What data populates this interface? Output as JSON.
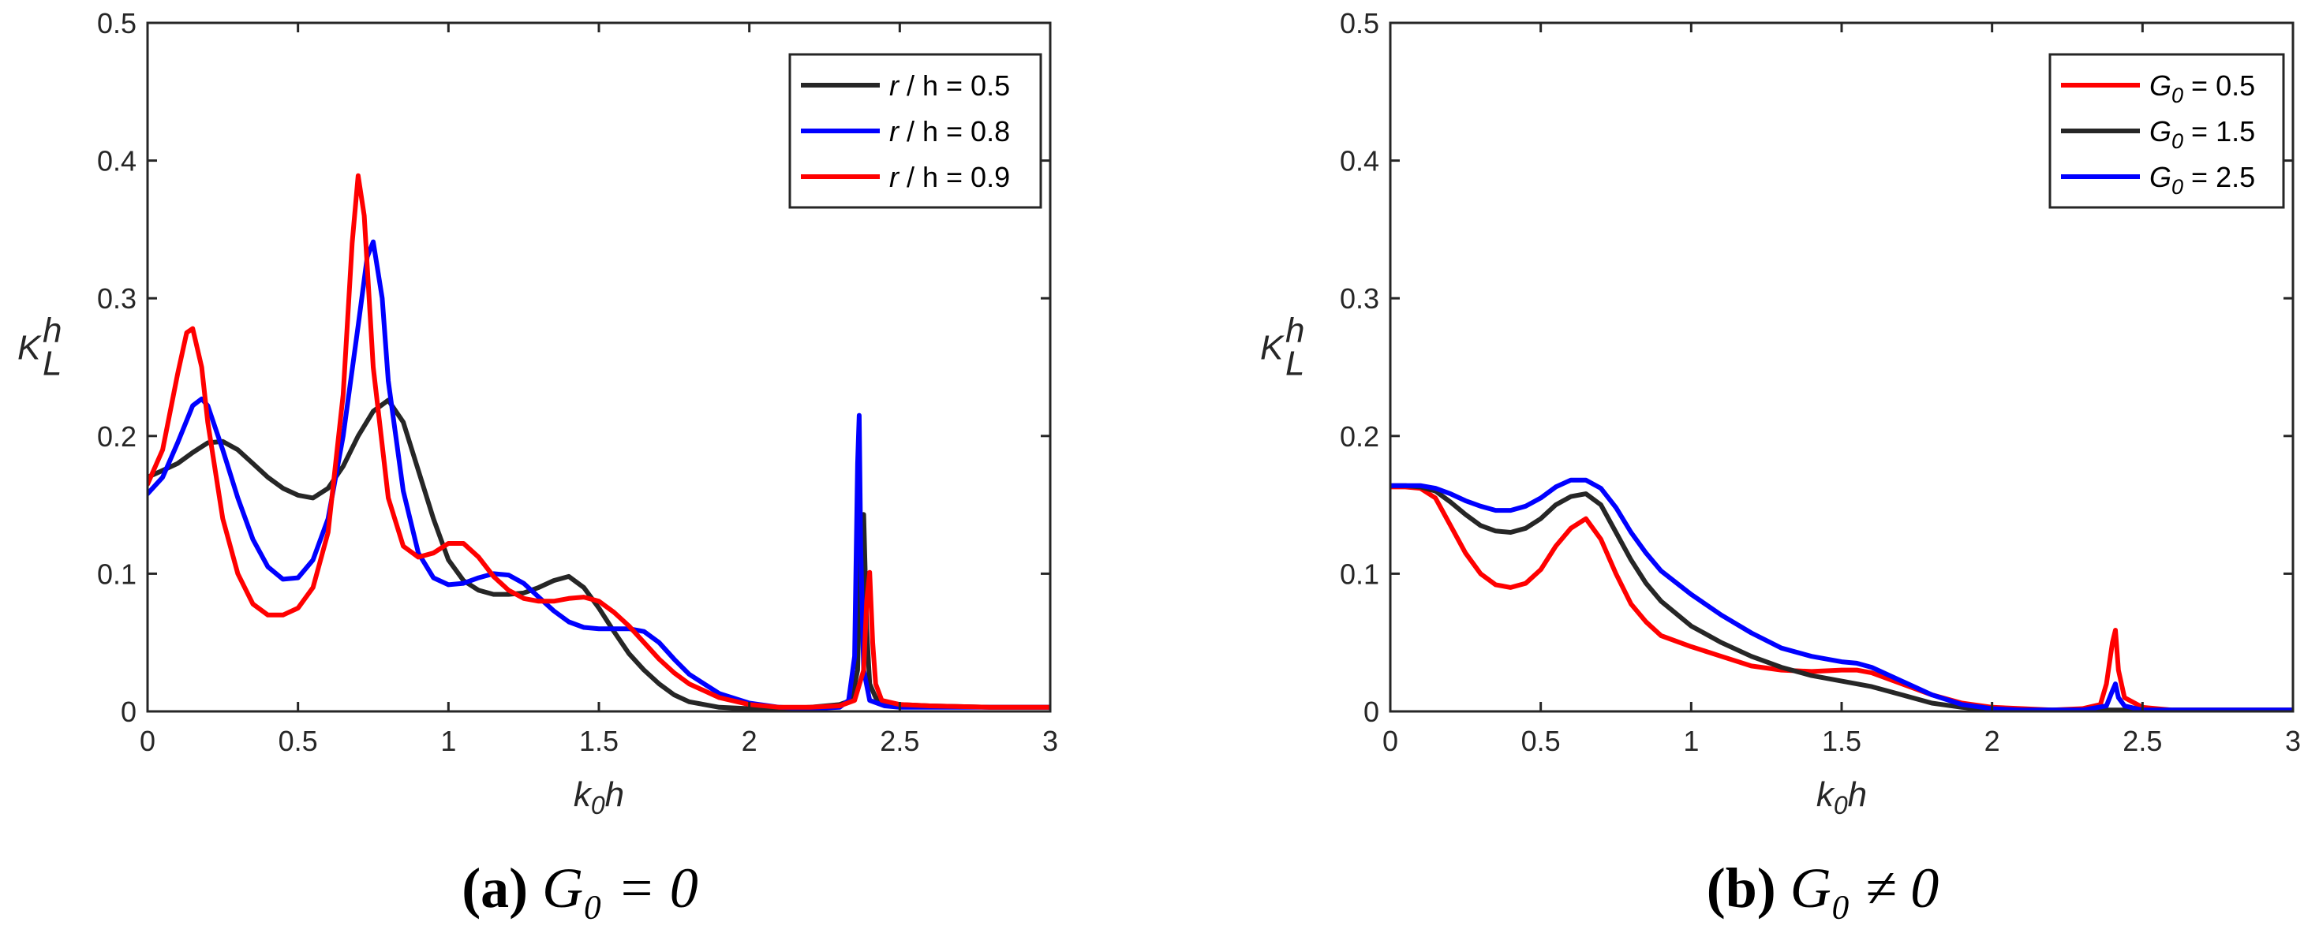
{
  "chart_data": [
    {
      "type": "line",
      "caption": {
        "tag": "(a)",
        "text": "G₀ = 0"
      },
      "xlabel": {
        "base": "k",
        "sub": "0",
        "tail": "h"
      },
      "ylabel": {
        "base": "K",
        "sup": "h",
        "sub": "L"
      },
      "xlim": [
        0,
        3
      ],
      "ylim": [
        0,
        0.5
      ],
      "xticks": [
        0,
        0.5,
        1,
        1.5,
        2,
        2.5,
        3
      ],
      "xtick_labels": [
        "0",
        "0.5",
        "1",
        "1.5",
        "2",
        "2.5",
        "3"
      ],
      "yticks": [
        0,
        0.1,
        0.2,
        0.3,
        0.4,
        0.5
      ],
      "ytick_labels": [
        "0",
        "0.1",
        "0.2",
        "0.3",
        "0.4",
        "0.5"
      ],
      "legend_position": "top-right",
      "series": [
        {
          "name": "r / h = 0.5",
          "legend_label": "r / h = 0.5",
          "color": "#262626",
          "x": [
            0,
            0.05,
            0.1,
            0.15,
            0.2,
            0.25,
            0.3,
            0.35,
            0.4,
            0.45,
            0.5,
            0.55,
            0.6,
            0.65,
            0.7,
            0.75,
            0.8,
            0.85,
            0.9,
            0.95,
            1.0,
            1.05,
            1.1,
            1.15,
            1.2,
            1.25,
            1.3,
            1.35,
            1.4,
            1.45,
            1.5,
            1.55,
            1.6,
            1.65,
            1.7,
            1.75,
            1.8,
            1.9,
            2.0,
            2.1,
            2.2,
            2.3,
            2.34,
            2.36,
            2.37,
            2.38,
            2.39,
            2.4,
            2.42,
            2.45,
            2.5,
            2.6,
            2.8,
            3.0
          ],
          "y": [
            0.17,
            0.175,
            0.18,
            0.188,
            0.195,
            0.196,
            0.19,
            0.18,
            0.17,
            0.162,
            0.157,
            0.155,
            0.162,
            0.178,
            0.2,
            0.218,
            0.226,
            0.21,
            0.175,
            0.14,
            0.11,
            0.095,
            0.088,
            0.085,
            0.085,
            0.086,
            0.09,
            0.095,
            0.098,
            0.09,
            0.075,
            0.058,
            0.042,
            0.03,
            0.02,
            0.012,
            0.007,
            0.003,
            0.002,
            0.002,
            0.003,
            0.005,
            0.008,
            0.03,
            0.12,
            0.143,
            0.06,
            0.02,
            0.01,
            0.007,
            0.005,
            0.004,
            0.003,
            0.003
          ]
        },
        {
          "name": "r / h = 0.8",
          "legend_label": "r / h = 0.8",
          "color": "#0000ff",
          "x": [
            0,
            0.05,
            0.1,
            0.15,
            0.18,
            0.2,
            0.25,
            0.3,
            0.35,
            0.4,
            0.45,
            0.5,
            0.55,
            0.6,
            0.65,
            0.7,
            0.73,
            0.75,
            0.78,
            0.8,
            0.85,
            0.9,
            0.95,
            1.0,
            1.05,
            1.1,
            1.15,
            1.2,
            1.25,
            1.3,
            1.35,
            1.4,
            1.45,
            1.5,
            1.55,
            1.6,
            1.65,
            1.7,
            1.75,
            1.8,
            1.9,
            2.0,
            2.1,
            2.2,
            2.3,
            2.33,
            2.35,
            2.36,
            2.365,
            2.37,
            2.38,
            2.4,
            2.45,
            2.5,
            2.6,
            2.8,
            3.0
          ],
          "y": [
            0.158,
            0.17,
            0.195,
            0.222,
            0.227,
            0.222,
            0.19,
            0.155,
            0.125,
            0.105,
            0.096,
            0.097,
            0.11,
            0.14,
            0.2,
            0.28,
            0.33,
            0.341,
            0.3,
            0.24,
            0.16,
            0.115,
            0.097,
            0.092,
            0.093,
            0.097,
            0.1,
            0.099,
            0.093,
            0.083,
            0.073,
            0.065,
            0.061,
            0.06,
            0.06,
            0.06,
            0.058,
            0.05,
            0.038,
            0.027,
            0.013,
            0.006,
            0.003,
            0.002,
            0.003,
            0.008,
            0.04,
            0.18,
            0.215,
            0.12,
            0.03,
            0.008,
            0.004,
            0.003,
            0.003,
            0.003,
            0.003
          ]
        },
        {
          "name": "r / h = 0.9",
          "legend_label": "r / h = 0.9",
          "color": "#ff0000",
          "x": [
            0,
            0.05,
            0.1,
            0.13,
            0.15,
            0.18,
            0.2,
            0.25,
            0.3,
            0.35,
            0.4,
            0.45,
            0.5,
            0.55,
            0.6,
            0.65,
            0.68,
            0.7,
            0.72,
            0.75,
            0.8,
            0.85,
            0.9,
            0.95,
            1.0,
            1.05,
            1.1,
            1.15,
            1.2,
            1.25,
            1.3,
            1.35,
            1.4,
            1.45,
            1.5,
            1.55,
            1.6,
            1.65,
            1.7,
            1.75,
            1.8,
            1.9,
            2.0,
            2.1,
            2.2,
            2.3,
            2.35,
            2.38,
            2.39,
            2.4,
            2.41,
            2.42,
            2.44,
            2.5,
            2.6,
            2.8,
            3.0
          ],
          "y": [
            0.165,
            0.19,
            0.245,
            0.275,
            0.278,
            0.25,
            0.21,
            0.14,
            0.1,
            0.078,
            0.07,
            0.07,
            0.075,
            0.09,
            0.13,
            0.23,
            0.34,
            0.389,
            0.36,
            0.25,
            0.155,
            0.12,
            0.112,
            0.115,
            0.122,
            0.122,
            0.112,
            0.098,
            0.088,
            0.082,
            0.08,
            0.08,
            0.082,
            0.083,
            0.08,
            0.072,
            0.062,
            0.05,
            0.038,
            0.028,
            0.02,
            0.01,
            0.005,
            0.003,
            0.003,
            0.004,
            0.008,
            0.03,
            0.08,
            0.101,
            0.05,
            0.02,
            0.008,
            0.005,
            0.004,
            0.003,
            0.003
          ]
        }
      ]
    },
    {
      "type": "line",
      "caption": {
        "tag": "(b)",
        "text": "G₀ ≠ 0"
      },
      "xlabel": {
        "base": "k",
        "sub": "0",
        "tail": "h"
      },
      "ylabel": {
        "base": "K",
        "sup": "h",
        "sub": "L"
      },
      "xlim": [
        0,
        3
      ],
      "ylim": [
        0,
        0.5
      ],
      "xticks": [
        0,
        0.5,
        1,
        1.5,
        2,
        2.5,
        3
      ],
      "xtick_labels": [
        "0",
        "0.5",
        "1",
        "1.5",
        "2",
        "2.5",
        "3"
      ],
      "yticks": [
        0,
        0.1,
        0.2,
        0.3,
        0.4,
        0.5
      ],
      "ytick_labels": [
        "0",
        "0.1",
        "0.2",
        "0.3",
        "0.4",
        "0.5"
      ],
      "legend_position": "top-right",
      "series": [
        {
          "name": "G0 = 0.5",
          "legend_label": {
            "base": "G",
            "sub": "0",
            "tail": " = 0.5"
          },
          "color": "#ff0000",
          "x": [
            0,
            0.05,
            0.1,
            0.15,
            0.2,
            0.25,
            0.3,
            0.35,
            0.4,
            0.45,
            0.5,
            0.55,
            0.6,
            0.65,
            0.7,
            0.75,
            0.8,
            0.85,
            0.9,
            1.0,
            1.1,
            1.2,
            1.3,
            1.4,
            1.5,
            1.55,
            1.6,
            1.7,
            1.8,
            1.9,
            2.0,
            2.1,
            2.2,
            2.3,
            2.36,
            2.38,
            2.4,
            2.41,
            2.42,
            2.44,
            2.5,
            2.6,
            2.8,
            3.0
          ],
          "y": [
            0.163,
            0.163,
            0.162,
            0.155,
            0.135,
            0.115,
            0.1,
            0.092,
            0.09,
            0.093,
            0.103,
            0.12,
            0.133,
            0.14,
            0.125,
            0.1,
            0.078,
            0.065,
            0.055,
            0.047,
            0.04,
            0.033,
            0.03,
            0.029,
            0.03,
            0.03,
            0.028,
            0.02,
            0.012,
            0.006,
            0.003,
            0.002,
            0.001,
            0.002,
            0.005,
            0.02,
            0.05,
            0.059,
            0.03,
            0.01,
            0.003,
            0.001,
            0.001,
            0.001
          ]
        },
        {
          "name": "G0 = 1.5",
          "legend_label": {
            "base": "G",
            "sub": "0",
            "tail": " = 1.5"
          },
          "color": "#262626",
          "x": [
            0,
            0.05,
            0.1,
            0.15,
            0.2,
            0.25,
            0.3,
            0.35,
            0.4,
            0.45,
            0.5,
            0.55,
            0.6,
            0.65,
            0.7,
            0.75,
            0.8,
            0.85,
            0.9,
            1.0,
            1.1,
            1.2,
            1.3,
            1.4,
            1.5,
            1.6,
            1.7,
            1.8,
            1.9,
            2.0,
            2.1,
            2.2,
            2.3,
            2.4,
            2.5,
            2.6,
            2.8,
            3.0
          ],
          "y": [
            0.164,
            0.164,
            0.163,
            0.16,
            0.152,
            0.143,
            0.135,
            0.131,
            0.13,
            0.133,
            0.14,
            0.15,
            0.156,
            0.158,
            0.15,
            0.13,
            0.11,
            0.093,
            0.08,
            0.062,
            0.05,
            0.04,
            0.032,
            0.026,
            0.022,
            0.018,
            0.012,
            0.006,
            0.003,
            0.001,
            0.001,
            0.001,
            0.001,
            0.001,
            0.001,
            0.001,
            0.001,
            0.001
          ]
        },
        {
          "name": "G0 = 2.5",
          "legend_label": {
            "base": "G",
            "sub": "0",
            "tail": " = 2.5"
          },
          "color": "#0000ff",
          "x": [
            0,
            0.05,
            0.1,
            0.15,
            0.2,
            0.25,
            0.3,
            0.35,
            0.4,
            0.45,
            0.5,
            0.55,
            0.6,
            0.65,
            0.7,
            0.75,
            0.8,
            0.85,
            0.9,
            1.0,
            1.1,
            1.2,
            1.3,
            1.4,
            1.5,
            1.55,
            1.6,
            1.7,
            1.8,
            1.9,
            2.0,
            2.1,
            2.2,
            2.3,
            2.38,
            2.4,
            2.41,
            2.42,
            2.44,
            2.5,
            2.6,
            2.8,
            3.0
          ],
          "y": [
            0.164,
            0.164,
            0.164,
            0.162,
            0.158,
            0.153,
            0.149,
            0.146,
            0.146,
            0.149,
            0.155,
            0.163,
            0.168,
            0.168,
            0.162,
            0.148,
            0.13,
            0.115,
            0.102,
            0.085,
            0.07,
            0.057,
            0.046,
            0.04,
            0.036,
            0.035,
            0.032,
            0.022,
            0.012,
            0.005,
            0.002,
            0.001,
            0.001,
            0.001,
            0.004,
            0.015,
            0.02,
            0.01,
            0.004,
            0.001,
            0.001,
            0.001,
            0.001
          ]
        }
      ]
    }
  ]
}
